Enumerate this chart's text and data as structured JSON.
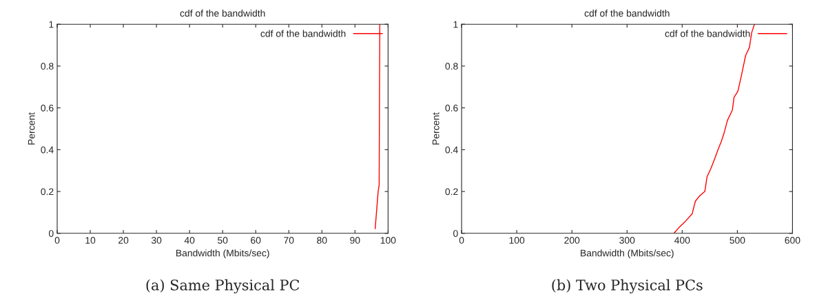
{
  "chart_data": [
    {
      "type": "line",
      "title": "cdf of the bandwidth",
      "xlabel": "Bandwidth (Mbits/sec)",
      "ylabel": "Percent",
      "legend": "top right",
      "marker": "none",
      "line_style": "solid",
      "grid": false,
      "xlim": [
        0,
        100
      ],
      "xticks": [
        0,
        10,
        20,
        30,
        40,
        50,
        60,
        70,
        80,
        90,
        100
      ],
      "ylim": [
        0,
        1
      ],
      "yticks": [
        0,
        0.2,
        0.4,
        0.6,
        0.8,
        1
      ],
      "series": [
        {
          "name": "cdf of the bandwidth",
          "color": "#ff0000",
          "x": [
            96.1,
            97.0,
            97.3,
            97.5
          ],
          "values": [
            0.022,
            0.2,
            0.23,
            1.0
          ]
        }
      ],
      "annotations": [
        "(a) Same Physical PC"
      ]
    },
    {
      "type": "line",
      "title": "cdf of the bandwidth",
      "xlabel": "Bandwidth (Mbits/sec)",
      "ylabel": "Percent",
      "legend": "top right",
      "marker": "none",
      "line_style": "solid",
      "grid": false,
      "xlim": [
        0,
        600
      ],
      "xticks": [
        0,
        100,
        200,
        300,
        400,
        500,
        600
      ],
      "ylim": [
        0,
        1
      ],
      "yticks": [
        0,
        0.2,
        0.4,
        0.6,
        0.8,
        1
      ],
      "series": [
        {
          "name": "cdf of the bandwidth",
          "color": "#ff0000",
          "x": [
            385,
            394,
            405,
            418,
            424,
            432,
            441,
            445,
            452,
            458,
            465,
            471,
            476,
            482,
            491,
            494,
            501,
            507,
            515,
            522,
            526,
            531
          ],
          "values": [
            0,
            0.027,
            0.055,
            0.093,
            0.154,
            0.18,
            0.2,
            0.27,
            0.31,
            0.35,
            0.4,
            0.44,
            0.48,
            0.54,
            0.59,
            0.65,
            0.68,
            0.75,
            0.85,
            0.89,
            0.96,
            1.0
          ]
        }
      ],
      "annotations": [
        "(b) Two Physical PCs"
      ]
    }
  ]
}
